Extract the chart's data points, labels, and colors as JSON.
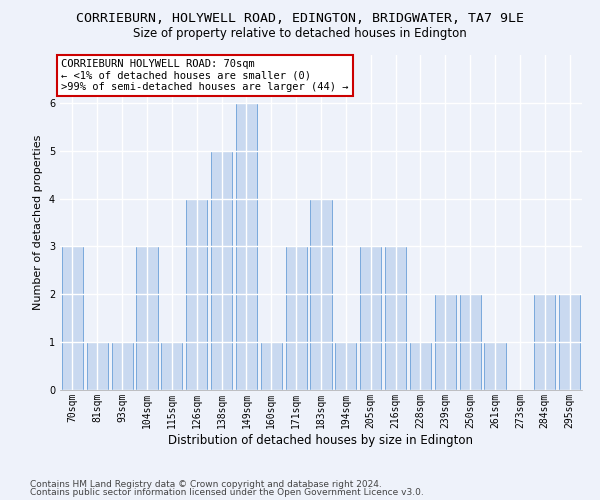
{
  "title": "CORRIEBURN, HOLYWELL ROAD, EDINGTON, BRIDGWATER, TA7 9LE",
  "subtitle": "Size of property relative to detached houses in Edington",
  "xlabel": "Distribution of detached houses by size in Edington",
  "ylabel": "Number of detached properties",
  "categories": [
    "70sqm",
    "81sqm",
    "93sqm",
    "104sqm",
    "115sqm",
    "126sqm",
    "138sqm",
    "149sqm",
    "160sqm",
    "171sqm",
    "183sqm",
    "194sqm",
    "205sqm",
    "216sqm",
    "228sqm",
    "239sqm",
    "250sqm",
    "261sqm",
    "273sqm",
    "284sqm",
    "295sqm"
  ],
  "values": [
    3,
    1,
    1,
    3,
    1,
    4,
    5,
    6,
    1,
    3,
    4,
    1,
    3,
    3,
    1,
    2,
    2,
    1,
    0,
    2,
    2
  ],
  "bar_color": "#c9d9f0",
  "bar_edge_color": "#6a9fd8",
  "annotation_box_text": "CORRIEBURN HOLYWELL ROAD: 70sqm\n← <1% of detached houses are smaller (0)\n>99% of semi-detached houses are larger (44) →",
  "annotation_box_color": "#ffffff",
  "annotation_box_edge_color": "#cc0000",
  "ylim": [
    0,
    7
  ],
  "yticks": [
    0,
    1,
    2,
    3,
    4,
    5,
    6
  ],
  "footer_line1": "Contains HM Land Registry data © Crown copyright and database right 2024.",
  "footer_line2": "Contains public sector information licensed under the Open Government Licence v3.0.",
  "background_color": "#eef2fa",
  "grid_color": "#ffffff",
  "title_fontsize": 9.5,
  "subtitle_fontsize": 8.5,
  "xlabel_fontsize": 8.5,
  "ylabel_fontsize": 8,
  "tick_fontsize": 7,
  "annotation_fontsize": 7.5,
  "footer_fontsize": 6.5
}
